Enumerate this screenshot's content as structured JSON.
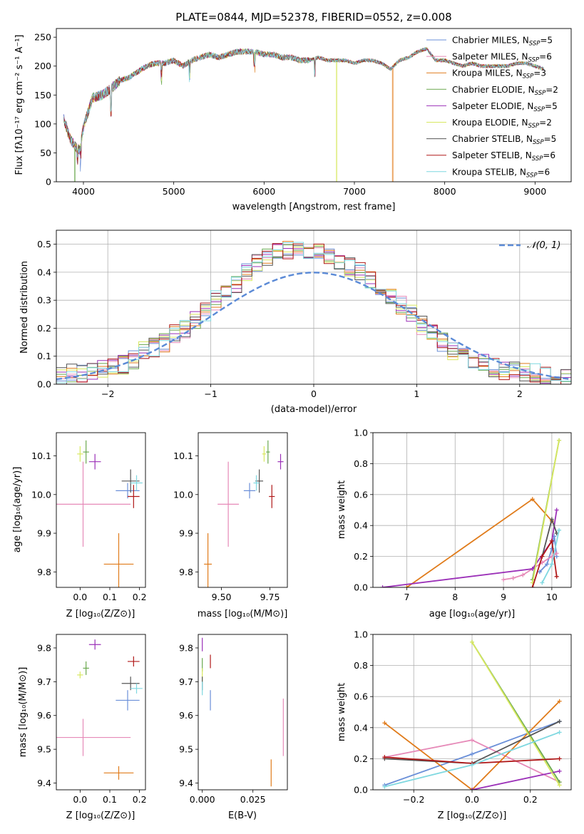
{
  "figure": {
    "title": "PLATE=0844, MJD=52378, FIBERID=0552, z=0.008"
  },
  "legend_top": [
    {
      "name": "Chabrier MILES, N",
      "sub": "SSP",
      "tail": "=5",
      "color": "#6a8fd8"
    },
    {
      "name": "Salpeter MILES, N",
      "sub": "SSP",
      "tail": "=6",
      "color": "#e68ab8"
    },
    {
      "name": "Kroupa MILES, N",
      "sub": "SSP",
      "tail": "=3",
      "color": "#e07b1a"
    },
    {
      "name": "Chabrier ELODIE, N",
      "sub": "SSP",
      "tail": "=2",
      "color": "#6aa84f"
    },
    {
      "name": "Salpeter ELODIE, N",
      "sub": "SSP",
      "tail": "=5",
      "color": "#9b30b8"
    },
    {
      "name": "Kroupa ELODIE, N",
      "sub": "SSP",
      "tail": "=2",
      "color": "#d8e860"
    },
    {
      "name": "Chabrier STELIB, N",
      "sub": "SSP",
      "tail": "=5",
      "color": "#555555"
    },
    {
      "name": "Salpeter STELIB, N",
      "sub": "SSP",
      "tail": "=6",
      "color": "#b01818"
    },
    {
      "name": "Kroupa STELIB, N",
      "sub": "SSP",
      "tail": "=6",
      "color": "#7fd8e0"
    }
  ],
  "legend_hist": "𝒩(0, 1)",
  "chart_data": [
    {
      "id": "spectrum",
      "type": "line",
      "title": "PLATE=0844, MJD=52378, FIBERID=0552, z=0.008",
      "xlabel": "wavelength [Angstrom, rest frame]",
      "ylabel": "Flux [f_λ 10^-17 erg cm^-2 s^-1 A^-1]",
      "xlim": [
        3700,
        9400
      ],
      "ylim": [
        0,
        265
      ],
      "xticks": [
        4000,
        5000,
        6000,
        7000,
        8000,
        9000
      ],
      "yticks": [
        0,
        50,
        100,
        150,
        200,
        250
      ],
      "grid": false,
      "legend": "top-right",
      "x": [
        3780,
        3850,
        3920,
        3960,
        4000,
        4100,
        4200,
        4300,
        4400,
        4500,
        4600,
        4700,
        4800,
        4900,
        5000,
        5100,
        5200,
        5300,
        5400,
        5500,
        5600,
        5700,
        5800,
        5900,
        6000,
        6100,
        6200,
        6300,
        6400,
        6500,
        6600,
        6700,
        6800,
        6900,
        7000,
        7100,
        7200,
        7300,
        7400,
        7500,
        7600,
        7700,
        7800,
        7900,
        8000,
        8100,
        8200,
        8300,
        8400,
        8500,
        8600,
        8700,
        8800,
        8900,
        9000,
        9100
      ],
      "y": [
        110,
        75,
        60,
        55,
        95,
        145,
        150,
        160,
        175,
        180,
        190,
        200,
        205,
        205,
        210,
        200,
        210,
        215,
        220,
        215,
        220,
        225,
        225,
        225,
        220,
        220,
        215,
        215,
        210,
        210,
        215,
        210,
        210,
        210,
        205,
        210,
        210,
        205,
        195,
        210,
        215,
        225,
        230,
        210,
        210,
        205,
        200,
        205,
        200,
        200,
        200,
        200,
        205,
        205,
        200,
        195
      ],
      "dips": [
        {
          "series": "Kroupa ELODIE, N=2",
          "x": 6800,
          "y": 0
        },
        {
          "series": "Kroupa MILES, N=3",
          "x": 7420,
          "y": 0
        },
        {
          "series": "Chabrier ELODIE, N=2",
          "x": 3900,
          "y": 0
        }
      ]
    },
    {
      "id": "residuals",
      "type": "histogram",
      "xlabel": "(data-model)/error",
      "ylabel": "Normed distribution",
      "xlim": [
        -2.5,
        2.5
      ],
      "ylim": [
        0,
        0.55
      ],
      "xticks": [
        -2,
        -1,
        0,
        1,
        2
      ],
      "yticks": [
        0.0,
        0.1,
        0.2,
        0.3,
        0.4,
        0.5
      ],
      "grid": true,
      "legend": "top-right",
      "bin_width": 0.1,
      "reference_curve": "N(0,1)",
      "bin_centers": [
        -2.45,
        -2.35,
        -2.25,
        -2.15,
        -2.05,
        -1.95,
        -1.85,
        -1.75,
        -1.65,
        -1.55,
        -1.45,
        -1.35,
        -1.25,
        -1.15,
        -1.05,
        -0.95,
        -0.85,
        -0.75,
        -0.65,
        -0.55,
        -0.45,
        -0.35,
        -0.25,
        -0.15,
        -0.05,
        0.05,
        0.15,
        0.25,
        0.35,
        0.45,
        0.55,
        0.65,
        0.75,
        0.85,
        0.95,
        1.05,
        1.15,
        1.25,
        1.35,
        1.45,
        1.55,
        1.65,
        1.75,
        1.85,
        1.95,
        2.05,
        2.15,
        2.25,
        2.35,
        2.45
      ],
      "values_envelope": [
        0.03,
        0.04,
        0.04,
        0.05,
        0.05,
        0.06,
        0.07,
        0.09,
        0.12,
        0.13,
        0.15,
        0.18,
        0.2,
        0.23,
        0.26,
        0.3,
        0.33,
        0.36,
        0.4,
        0.43,
        0.45,
        0.47,
        0.48,
        0.49,
        0.48,
        0.47,
        0.45,
        0.44,
        0.42,
        0.4,
        0.37,
        0.35,
        0.32,
        0.28,
        0.25,
        0.21,
        0.18,
        0.15,
        0.12,
        0.1,
        0.09,
        0.08,
        0.06,
        0.05,
        0.05,
        0.04,
        0.04,
        0.03,
        0.03,
        0.03
      ]
    },
    {
      "id": "age_vs_Z",
      "type": "errorbar",
      "xlabel": "Z [log10(Z/Z⊙)]",
      "ylabel": "age [log10(age/yr)]",
      "xlim": [
        -0.08,
        0.22
      ],
      "ylim": [
        9.76,
        10.16
      ],
      "xticks": [
        0.0,
        0.1,
        0.2
      ],
      "yticks": [
        9.8,
        9.9,
        10.0,
        10.1
      ],
      "grid": false,
      "points": [
        {
          "series": "Chabrier MILES",
          "x": 0.16,
          "xerr": 0.04,
          "y": 10.01,
          "yerr": 0.02
        },
        {
          "series": "Salpeter MILES",
          "x": 0.01,
          "xerr": 0.16,
          "y": 9.975,
          "yerr": 0.11
        },
        {
          "series": "Kroupa MILES",
          "x": 0.13,
          "xerr": 0.05,
          "y": 9.82,
          "yerr": 0.08
        },
        {
          "series": "Chabrier ELODIE",
          "x": 0.02,
          "xerr": 0.01,
          "y": 10.11,
          "yerr": 0.03
        },
        {
          "series": "Salpeter ELODIE",
          "x": 0.05,
          "xerr": 0.02,
          "y": 10.085,
          "yerr": 0.02
        },
        {
          "series": "Kroupa ELODIE",
          "x": 0.0,
          "xerr": 0.01,
          "y": 10.105,
          "yerr": 0.02
        },
        {
          "series": "Chabrier STELIB",
          "x": 0.17,
          "xerr": 0.03,
          "y": 10.035,
          "yerr": 0.03
        },
        {
          "series": "Salpeter STELIB",
          "x": 0.18,
          "xerr": 0.02,
          "y": 9.995,
          "yerr": 0.03
        },
        {
          "series": "Kroupa STELIB",
          "x": 0.19,
          "xerr": 0.02,
          "y": 10.03,
          "yerr": 0.02
        }
      ]
    },
    {
      "id": "age_vs_mass",
      "type": "errorbar",
      "xlabel": "mass [log10(M/M⊙)]",
      "ylabel": "",
      "xlim": [
        9.38,
        9.84
      ],
      "ylim": [
        9.76,
        10.16
      ],
      "xticks": [
        9.5,
        9.75
      ],
      "yticks": [
        9.8,
        9.9,
        10.0,
        10.1
      ],
      "grid": false,
      "points": [
        {
          "series": "Chabrier MILES",
          "x": 9.645,
          "xerr": 0.03,
          "y": 10.01,
          "yerr": 0.02
        },
        {
          "series": "Salpeter MILES",
          "x": 9.535,
          "xerr": 0.055,
          "y": 9.975,
          "yerr": 0.11
        },
        {
          "series": "Kroupa MILES",
          "x": 9.43,
          "xerr": 0.02,
          "y": 9.82,
          "yerr": 0.08
        },
        {
          "series": "Chabrier ELODIE",
          "x": 9.74,
          "xerr": 0.01,
          "y": 10.11,
          "yerr": 0.03
        },
        {
          "series": "Salpeter ELODIE",
          "x": 9.805,
          "xerr": 0.015,
          "y": 10.085,
          "yerr": 0.02
        },
        {
          "series": "Kroupa ELODIE",
          "x": 9.72,
          "xerr": 0.01,
          "y": 10.105,
          "yerr": 0.02
        },
        {
          "series": "Chabrier STELIB",
          "x": 9.695,
          "xerr": 0.02,
          "y": 10.035,
          "yerr": 0.03
        },
        {
          "series": "Salpeter STELIB",
          "x": 9.76,
          "xerr": 0.015,
          "y": 9.995,
          "yerr": 0.03
        },
        {
          "series": "Kroupa STELIB",
          "x": 9.68,
          "xerr": 0.015,
          "y": 10.03,
          "yerr": 0.02
        }
      ]
    },
    {
      "id": "massweight_vs_age",
      "type": "line",
      "xlabel": "age [log10(age/yr)]",
      "ylabel": "mass weight",
      "xlim": [
        6.3,
        10.4
      ],
      "ylim": [
        0,
        1.0
      ],
      "xticks": [
        7,
        8,
        9,
        10
      ],
      "yticks": [
        0.0,
        0.2,
        0.4,
        0.6,
        0.8,
        1.0
      ],
      "grid": true,
      "series": [
        {
          "name": "Chabrier MILES",
          "x": [
            9.75,
            9.9,
            10.0,
            10.05,
            10.1
          ],
          "y": [
            0.1,
            0.15,
            0.25,
            0.33,
            0.2
          ]
        },
        {
          "name": "Salpeter MILES",
          "x": [
            9.0,
            9.2,
            9.4,
            9.6,
            9.8,
            10.0,
            10.1
          ],
          "y": [
            0.05,
            0.06,
            0.08,
            0.12,
            0.16,
            0.2,
            0.22
          ]
        },
        {
          "name": "Kroupa MILES",
          "x": [
            7.0,
            9.6,
            10.0
          ],
          "y": [
            0.0,
            0.57,
            0.43
          ]
        },
        {
          "name": "Chabrier ELODIE",
          "x": [
            9.6,
            10.15
          ],
          "y": [
            0.05,
            0.95
          ]
        },
        {
          "name": "Salpeter ELODIE",
          "x": [
            6.5,
            9.6,
            10.0,
            10.1
          ],
          "y": [
            0.0,
            0.12,
            0.3,
            0.5
          ]
        },
        {
          "name": "Kroupa ELODIE",
          "x": [
            9.6,
            10.15
          ],
          "y": [
            0.03,
            0.95
          ]
        },
        {
          "name": "Chabrier STELIB",
          "x": [
            9.8,
            10.0,
            10.1
          ],
          "y": [
            0.2,
            0.44,
            0.35
          ]
        },
        {
          "name": "Salpeter STELIB",
          "x": [
            9.6,
            9.8,
            10.0,
            10.1
          ],
          "y": [
            0.0,
            0.2,
            0.3,
            0.07
          ]
        },
        {
          "name": "Kroupa STELIB",
          "x": [
            9.8,
            10.0,
            10.15
          ],
          "y": [
            0.03,
            0.15,
            0.37
          ]
        }
      ]
    },
    {
      "id": "mass_vs_Z",
      "type": "errorbar",
      "xlabel": "Z [log10(Z/Z⊙)]",
      "ylabel": "mass [log10(M/M⊙)]",
      "xlim": [
        -0.08,
        0.22
      ],
      "ylim": [
        9.38,
        9.84
      ],
      "xticks": [
        0.0,
        0.1,
        0.2
      ],
      "yticks": [
        9.4,
        9.5,
        9.6,
        9.7,
        9.8
      ],
      "grid": false,
      "points": [
        {
          "series": "Chabrier MILES",
          "x": 0.16,
          "xerr": 0.04,
          "y": 9.645,
          "yerr": 0.03
        },
        {
          "series": "Salpeter MILES",
          "x": 0.01,
          "xerr": 0.16,
          "y": 9.535,
          "yerr": 0.055
        },
        {
          "series": "Kroupa MILES",
          "x": 0.13,
          "xerr": 0.05,
          "y": 9.43,
          "yerr": 0.02
        },
        {
          "series": "Chabrier ELODIE",
          "x": 0.02,
          "xerr": 0.01,
          "y": 9.74,
          "yerr": 0.02
        },
        {
          "series": "Salpeter ELODIE",
          "x": 0.05,
          "xerr": 0.02,
          "y": 9.81,
          "yerr": 0.015
        },
        {
          "series": "Kroupa ELODIE",
          "x": 0.0,
          "xerr": 0.01,
          "y": 9.72,
          "yerr": 0.01
        },
        {
          "series": "Chabrier STELIB",
          "x": 0.17,
          "xerr": 0.03,
          "y": 9.695,
          "yerr": 0.02
        },
        {
          "series": "Salpeter STELIB",
          "x": 0.18,
          "xerr": 0.02,
          "y": 9.76,
          "yerr": 0.015
        },
        {
          "series": "Kroupa STELIB",
          "x": 0.19,
          "xerr": 0.02,
          "y": 9.68,
          "yerr": 0.015
        }
      ]
    },
    {
      "id": "mass_vs_EBV",
      "type": "errorbar",
      "xlabel": "E(B-V)",
      "ylabel": "",
      "xlim": [
        -0.002,
        0.042
      ],
      "ylim": [
        9.38,
        9.84
      ],
      "xticks": [
        0.0,
        0.025
      ],
      "yticks": [
        9.4,
        9.5,
        9.6,
        9.7,
        9.8
      ],
      "grid": false,
      "points": [
        {
          "series": "Chabrier MILES",
          "x": 0.004,
          "y": 9.645,
          "yerr": 0.03
        },
        {
          "series": "Salpeter MILES",
          "x": 0.04,
          "y": 9.565,
          "yerr": 0.085
        },
        {
          "series": "Kroupa MILES",
          "x": 0.034,
          "y": 9.43,
          "yerr": 0.04
        },
        {
          "series": "Chabrier ELODIE",
          "x": 0.0,
          "y": 9.75,
          "yerr": 0.02
        },
        {
          "series": "Salpeter ELODIE",
          "x": 0.0,
          "y": 9.81,
          "yerr": 0.02
        },
        {
          "series": "Kroupa ELODIE",
          "x": 0.0,
          "y": 9.72,
          "yerr": 0.02
        },
        {
          "series": "Chabrier STELIB",
          "x": 0.0,
          "y": 9.695,
          "yerr": 0.02
        },
        {
          "series": "Salpeter STELIB",
          "x": 0.004,
          "y": 9.76,
          "yerr": 0.02
        },
        {
          "series": "Kroupa STELIB",
          "x": 0.0,
          "y": 9.68,
          "yerr": 0.02
        }
      ]
    },
    {
      "id": "massweight_vs_Z",
      "type": "line",
      "xlabel": "Z [log10(Z/Z⊙)]",
      "ylabel": "mass weight",
      "xlim": [
        -0.34,
        0.34
      ],
      "ylim": [
        0,
        1.0
      ],
      "xticks": [
        -0.2,
        0.0,
        0.2
      ],
      "yticks": [
        0.0,
        0.2,
        0.4,
        0.6,
        0.8,
        1.0
      ],
      "grid": true,
      "series": [
        {
          "name": "Chabrier MILES",
          "x": [
            -0.3,
            0.0,
            0.3
          ],
          "y": [
            0.03,
            0.23,
            0.44
          ]
        },
        {
          "name": "Salpeter MILES",
          "x": [
            -0.3,
            0.0,
            0.3
          ],
          "y": [
            0.21,
            0.32,
            0.05
          ]
        },
        {
          "name": "Kroupa MILES",
          "x": [
            -0.3,
            0.0,
            0.3
          ],
          "y": [
            0.43,
            0.0,
            0.57
          ]
        },
        {
          "name": "Chabrier ELODIE",
          "x": [
            0.0,
            0.3
          ],
          "y": [
            0.95,
            0.05
          ]
        },
        {
          "name": "Salpeter ELODIE",
          "x": [
            0.0,
            0.3
          ],
          "y": [
            0.0,
            0.12
          ]
        },
        {
          "name": "Kroupa ELODIE",
          "x": [
            0.0,
            0.3
          ],
          "y": [
            0.95,
            0.03
          ]
        },
        {
          "name": "Chabrier STELIB",
          "x": [
            -0.3,
            0.0,
            0.3
          ],
          "y": [
            0.2,
            0.17,
            0.44
          ]
        },
        {
          "name": "Salpeter STELIB",
          "x": [
            -0.3,
            0.0,
            0.3
          ],
          "y": [
            0.21,
            0.17,
            0.2
          ]
        },
        {
          "name": "Kroupa STELIB",
          "x": [
            -0.3,
            0.0,
            0.3
          ],
          "y": [
            0.02,
            0.16,
            0.37
          ]
        }
      ]
    }
  ]
}
